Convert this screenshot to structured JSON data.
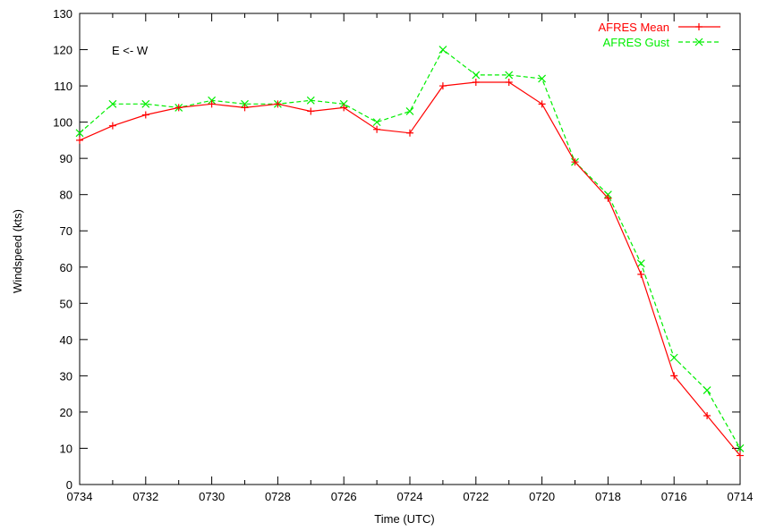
{
  "chart_data": {
    "type": "line",
    "title": "",
    "xlabel": "Time (UTC)",
    "ylabel": "Windspeed (kts)",
    "annotation": "E <- W",
    "x_tick_labels": [
      "0734",
      "0732",
      "0730",
      "0728",
      "0726",
      "0724",
      "0722",
      "0720",
      "0718",
      "0716",
      "0714"
    ],
    "yticks": [
      0,
      10,
      20,
      30,
      40,
      50,
      60,
      70,
      80,
      90,
      100,
      110,
      120,
      130
    ],
    "ylim": [
      0,
      130
    ],
    "x_order": "descending time (0734 at left, 0714 at right)",
    "x": [
      "0734",
      "0733",
      "0732",
      "0731",
      "0730",
      "0729",
      "0728",
      "0727",
      "0726",
      "0725",
      "0724",
      "0723",
      "0722",
      "0721",
      "0720",
      "0719",
      "0718",
      "0717",
      "0716",
      "0715",
      "0714"
    ],
    "legend_position": "top-right",
    "grid": false,
    "series": [
      {
        "name": "AFRES Mean",
        "color": "#ff0000",
        "line_style": "solid",
        "marker": "plus",
        "values": [
          95,
          99,
          102,
          104,
          105,
          104,
          105,
          103,
          104,
          98,
          97,
          110,
          111,
          111,
          105,
          89,
          79,
          58,
          30,
          19,
          8
        ]
      },
      {
        "name": "AFRES Gust",
        "color": "#00ee00",
        "line_style": "dashed",
        "marker": "cross",
        "values": [
          97,
          105,
          105,
          104,
          106,
          105,
          105,
          106,
          105,
          100,
          103,
          120,
          113,
          113,
          112,
          89,
          80,
          61,
          35,
          26,
          10
        ]
      }
    ]
  }
}
